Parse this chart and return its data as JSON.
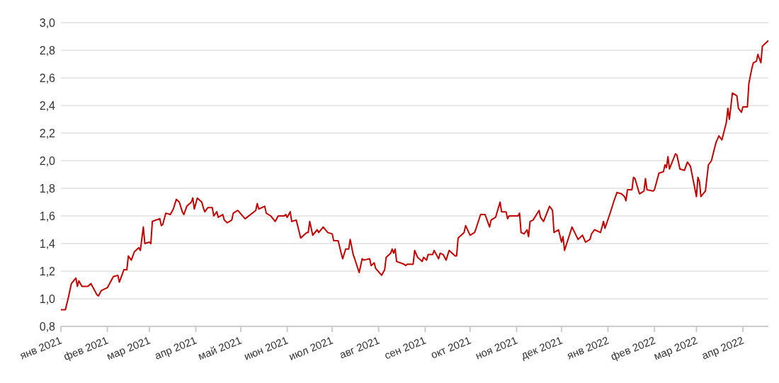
{
  "chart_data": {
    "type": "line",
    "x": [
      "2021-01-01",
      "2021-01-04",
      "2021-01-06",
      "2021-01-08",
      "2021-01-11",
      "2021-01-12",
      "2021-01-13",
      "2021-01-15",
      "2021-01-19",
      "2021-01-21",
      "2021-01-25",
      "2021-01-26",
      "2021-01-28",
      "2021-02-01",
      "2021-02-03",
      "2021-02-05",
      "2021-02-08",
      "2021-02-09",
      "2021-02-12",
      "2021-02-14",
      "2021-02-15",
      "2021-02-17",
      "2021-02-19",
      "2021-02-22",
      "2021-02-23",
      "2021-02-25",
      "2021-02-26",
      "2021-03-01",
      "2021-03-02",
      "2021-03-03",
      "2021-03-08",
      "2021-03-09",
      "2021-03-10",
      "2021-03-12",
      "2021-03-15",
      "2021-03-17",
      "2021-03-19",
      "2021-03-21",
      "2021-03-23",
      "2021-03-24",
      "2021-03-26",
      "2021-03-29",
      "2021-03-30",
      "2021-03-31",
      "2021-04-02",
      "2021-04-05",
      "2021-04-06",
      "2021-04-07",
      "2021-04-09",
      "2021-04-12",
      "2021-04-13",
      "2021-04-15",
      "2021-04-16",
      "2021-04-19",
      "2021-04-20",
      "2021-04-22",
      "2021-04-25",
      "2021-04-26",
      "2021-04-29",
      "2021-05-03",
      "2021-05-04",
      "2021-05-11",
      "2021-05-12",
      "2021-05-13",
      "2021-05-17",
      "2021-05-18",
      "2021-05-21",
      "2021-05-24",
      "2021-05-26",
      "2021-05-30",
      "2021-05-31",
      "2021-06-01",
      "2021-06-03",
      "2021-06-04",
      "2021-06-07",
      "2021-06-10",
      "2021-06-14",
      "2021-06-15",
      "2021-06-16",
      "2021-06-18",
      "2021-06-21",
      "2021-06-22",
      "2021-06-25",
      "2021-06-28",
      "2021-07-01",
      "2021-07-02",
      "2021-07-05",
      "2021-07-07",
      "2021-07-08",
      "2021-07-10",
      "2021-07-12",
      "2021-07-13",
      "2021-07-15",
      "2021-07-16",
      "2021-07-19",
      "2021-07-21",
      "2021-07-22",
      "2021-07-26",
      "2021-07-27",
      "2021-07-29",
      "2021-07-30",
      "2021-08-03",
      "2021-08-05",
      "2021-08-06",
      "2021-08-09",
      "2021-08-10",
      "2021-08-11",
      "2021-08-12",
      "2021-08-13",
      "2021-08-18",
      "2021-08-19",
      "2021-08-20",
      "2021-08-24",
      "2021-08-25",
      "2021-08-27",
      "2021-08-30",
      "2021-08-31",
      "2021-09-02",
      "2021-09-03",
      "2021-09-06",
      "2021-09-07",
      "2021-09-10",
      "2021-09-11",
      "2021-09-13",
      "2021-09-15",
      "2021-09-17",
      "2021-09-21",
      "2021-09-22",
      "2021-09-23",
      "2021-09-27",
      "2021-09-28",
      "2021-10-01",
      "2021-10-04",
      "2021-10-05",
      "2021-10-08",
      "2021-10-11",
      "2021-10-14",
      "2021-10-15",
      "2021-10-18",
      "2021-10-21",
      "2021-10-22",
      "2021-10-25",
      "2021-10-26",
      "2021-10-27",
      "2021-11-02",
      "2021-11-03",
      "2021-11-04",
      "2021-11-06",
      "2021-11-08",
      "2021-11-09",
      "2021-11-10",
      "2021-11-12",
      "2021-11-16",
      "2021-11-17",
      "2021-11-19",
      "2021-11-23",
      "2021-11-25",
      "2021-11-26",
      "2021-11-29",
      "2021-12-01",
      "2021-12-02",
      "2021-12-03",
      "2021-12-08",
      "2021-12-12",
      "2021-12-15",
      "2021-12-17",
      "2021-12-20",
      "2021-12-21",
      "2021-12-23",
      "2021-12-27",
      "2021-12-29",
      "2021-12-30",
      "2022-01-03",
      "2022-01-05",
      "2022-01-07",
      "2022-01-10",
      "2022-01-12",
      "2022-01-13",
      "2022-01-14",
      "2022-01-17",
      "2022-01-18",
      "2022-01-19",
      "2022-01-22",
      "2022-01-25",
      "2022-01-26",
      "2022-01-27",
      "2022-01-31",
      "2022-02-01",
      "2022-02-04",
      "2022-02-07",
      "2022-02-08",
      "2022-02-09",
      "2022-02-10",
      "2022-02-11",
      "2022-02-15",
      "2022-02-16",
      "2022-02-18",
      "2022-02-21",
      "2022-02-23",
      "2022-02-25",
      "2022-02-27",
      "2022-03-01",
      "2022-03-02",
      "2022-03-03",
      "2022-03-04",
      "2022-03-07",
      "2022-03-09",
      "2022-03-11",
      "2022-03-14",
      "2022-03-16",
      "2022-03-18",
      "2022-03-21",
      "2022-03-22",
      "2022-03-23",
      "2022-03-25",
      "2022-03-28",
      "2022-03-29",
      "2022-03-31",
      "2022-04-01",
      "2022-04-04",
      "2022-04-05",
      "2022-04-07",
      "2022-04-08",
      "2022-04-10",
      "2022-04-11",
      "2022-04-13",
      "2022-04-14",
      "2022-04-16",
      "2022-04-18"
    ],
    "series": [
      {
        "color": "#c00000",
        "values": [
          0.92,
          0.92,
          1.01,
          1.11,
          1.15,
          1.09,
          1.13,
          1.09,
          1.09,
          1.11,
          1.03,
          1.02,
          1.06,
          1.08,
          1.12,
          1.16,
          1.17,
          1.12,
          1.21,
          1.21,
          1.31,
          1.28,
          1.34,
          1.37,
          1.35,
          1.52,
          1.4,
          1.41,
          1.4,
          1.56,
          1.58,
          1.53,
          1.54,
          1.62,
          1.61,
          1.65,
          1.72,
          1.7,
          1.63,
          1.61,
          1.67,
          1.7,
          1.73,
          1.65,
          1.73,
          1.7,
          1.66,
          1.63,
          1.66,
          1.66,
          1.6,
          1.63,
          1.59,
          1.61,
          1.57,
          1.55,
          1.57,
          1.62,
          1.64,
          1.59,
          1.58,
          1.64,
          1.69,
          1.65,
          1.67,
          1.62,
          1.6,
          1.56,
          1.6,
          1.6,
          1.61,
          1.59,
          1.63,
          1.56,
          1.57,
          1.44,
          1.48,
          1.48,
          1.56,
          1.46,
          1.5,
          1.48,
          1.52,
          1.48,
          1.47,
          1.42,
          1.42,
          1.33,
          1.29,
          1.36,
          1.36,
          1.43,
          1.32,
          1.29,
          1.19,
          1.29,
          1.28,
          1.29,
          1.24,
          1.26,
          1.22,
          1.17,
          1.21,
          1.3,
          1.33,
          1.36,
          1.33,
          1.36,
          1.27,
          1.25,
          1.24,
          1.25,
          1.25,
          1.35,
          1.3,
          1.27,
          1.3,
          1.28,
          1.32,
          1.32,
          1.35,
          1.29,
          1.33,
          1.32,
          1.28,
          1.35,
          1.31,
          1.31,
          1.44,
          1.48,
          1.53,
          1.46,
          1.48,
          1.51,
          1.61,
          1.61,
          1.52,
          1.57,
          1.59,
          1.7,
          1.63,
          1.63,
          1.58,
          1.6,
          1.6,
          1.62,
          1.48,
          1.47,
          1.5,
          1.45,
          1.56,
          1.57,
          1.64,
          1.59,
          1.56,
          1.67,
          1.64,
          1.48,
          1.5,
          1.41,
          1.45,
          1.35,
          1.52,
          1.43,
          1.46,
          1.41,
          1.43,
          1.47,
          1.5,
          1.48,
          1.56,
          1.51,
          1.64,
          1.71,
          1.77,
          1.76,
          1.74,
          1.71,
          1.79,
          1.79,
          1.88,
          1.87,
          1.76,
          1.78,
          1.87,
          1.79,
          1.78,
          1.79,
          1.91,
          1.92,
          1.97,
          1.95,
          2.03,
          1.94,
          2.05,
          2.04,
          1.94,
          1.93,
          1.99,
          1.96,
          1.85,
          1.74,
          1.88,
          1.85,
          1.74,
          1.78,
          1.97,
          2.0,
          2.13,
          2.18,
          2.15,
          2.28,
          2.38,
          2.3,
          2.49,
          2.47,
          2.38,
          2.35,
          2.39,
          2.39,
          2.56,
          2.67,
          2.71,
          2.72,
          2.77,
          2.71,
          2.83,
          2.85,
          2.87
        ]
      }
    ],
    "xlim": [
      "2021-01-01",
      "2022-04-18"
    ],
    "xticks": [
      {
        "value": "2021-01",
        "label": "янв 2021"
      },
      {
        "value": "2021-02",
        "label": "фев 2021"
      },
      {
        "value": "2021-03",
        "label": "мар 2021"
      },
      {
        "value": "2021-04",
        "label": "апр 2021"
      },
      {
        "value": "2021-05",
        "label": "май 2021"
      },
      {
        "value": "2021-06",
        "label": "июн 2021"
      },
      {
        "value": "2021-07",
        "label": "июл 2021"
      },
      {
        "value": "2021-08",
        "label": "авг 2021"
      },
      {
        "value": "2021-09",
        "label": "сен 2021"
      },
      {
        "value": "2021-10",
        "label": "окт 2021"
      },
      {
        "value": "2021-11",
        "label": "ноя 2021"
      },
      {
        "value": "2021-12",
        "label": "дек 2021"
      },
      {
        "value": "2022-01",
        "label": "янв 2022"
      },
      {
        "value": "2022-02",
        "label": "фев 2022"
      },
      {
        "value": "2022-03",
        "label": "мар 2022"
      },
      {
        "value": "2022-04",
        "label": "апр 2022"
      }
    ],
    "ylim": [
      0.8,
      3.0
    ],
    "yticks": [
      {
        "value": 0.8,
        "label": "0,8"
      },
      {
        "value": 1.0,
        "label": "1,0"
      },
      {
        "value": 1.2,
        "label": "1,2"
      },
      {
        "value": 1.4,
        "label": "1,4"
      },
      {
        "value": 1.6,
        "label": "1,6"
      },
      {
        "value": 1.8,
        "label": "1,8"
      },
      {
        "value": 2.0,
        "label": "2,0"
      },
      {
        "value": 2.2,
        "label": "2,2"
      },
      {
        "value": 2.4,
        "label": "2,4"
      },
      {
        "value": 2.6,
        "label": "2,6"
      },
      {
        "value": 2.8,
        "label": "2,8"
      },
      {
        "value": 3.0,
        "label": "3,0"
      }
    ],
    "grid": "y",
    "legend": false,
    "marker": "none",
    "line_style": "solid"
  }
}
